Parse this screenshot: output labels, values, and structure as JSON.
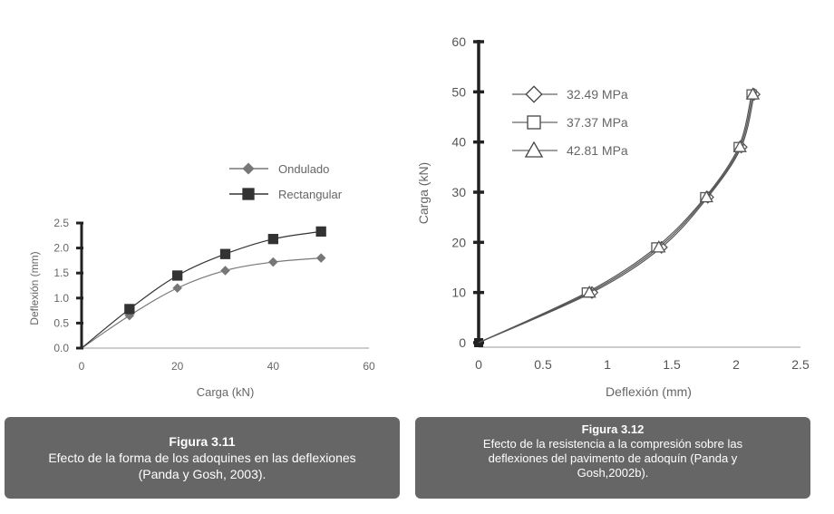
{
  "chart_data": [
    {
      "type": "line",
      "figure": "Figura 3.11",
      "xlabel": "Carga (kN)",
      "ylabel": "Deflexión (mm)",
      "xlim": [
        0,
        60
      ],
      "ylim": [
        0,
        2.5
      ],
      "x_ticks": [
        "0",
        "20",
        "40",
        "60"
      ],
      "y_ticks": [
        "0.0",
        "0.5",
        "1.0",
        "1.5",
        "2.0",
        "2.5"
      ],
      "grid": false,
      "legend_position": "top-right",
      "series": [
        {
          "name": "Ondulado",
          "marker": "diamond",
          "color": "#777777",
          "x": [
            10,
            20,
            30,
            40,
            50
          ],
          "y": [
            0.65,
            1.2,
            1.55,
            1.72,
            1.8
          ]
        },
        {
          "name": "Rectangular",
          "marker": "square",
          "color": "#333333",
          "x": [
            10,
            20,
            30,
            40,
            50
          ],
          "y": [
            0.78,
            1.45,
            1.88,
            2.18,
            2.33
          ]
        }
      ]
    },
    {
      "type": "line",
      "figure": "Figura 3.12",
      "xlabel": "Deflexión (mm)",
      "ylabel": "Carga (kN)",
      "xlim": [
        0,
        2.5
      ],
      "ylim": [
        0,
        60
      ],
      "x_ticks": [
        "0",
        "0.5",
        "1",
        "1.5",
        "2",
        "2.5"
      ],
      "y_ticks": [
        "0",
        "10",
        "20",
        "30",
        "40",
        "50",
        "60"
      ],
      "grid": false,
      "legend_position": "top-left",
      "series": [
        {
          "name": "32.49 MPa",
          "marker": "diamond",
          "color": "#555555",
          "x": [
            0,
            0.88,
            1.42,
            1.78,
            2.04,
            2.14
          ],
          "y": [
            0,
            10,
            19,
            29,
            39,
            49.5
          ]
        },
        {
          "name": "37.37 MPa",
          "marker": "square",
          "color": "#555555",
          "x": [
            0,
            0.84,
            1.38,
            1.76,
            2.02,
            2.12
          ],
          "y": [
            0,
            10,
            19,
            29,
            39,
            49.5
          ]
        },
        {
          "name": "42.81 MPa",
          "marker": "triangle",
          "color": "#555555",
          "x": [
            0,
            0.86,
            1.4,
            1.77,
            2.03,
            2.13
          ],
          "y": [
            0,
            10,
            19,
            29,
            39,
            49.5
          ]
        }
      ]
    }
  ],
  "captions": [
    {
      "title": "Figura 3.11",
      "lines": [
        "Efecto de la forma de los adoquines en las deflexiones",
        "(Panda y Gosh, 2003)."
      ]
    },
    {
      "title": "Figura 3.12",
      "lines": [
        "Efecto de la resistencia a la compresión sobre las",
        "deflexiones del pavimento de adoquín  (Panda y",
        "Gosh,2002b)."
      ]
    }
  ]
}
